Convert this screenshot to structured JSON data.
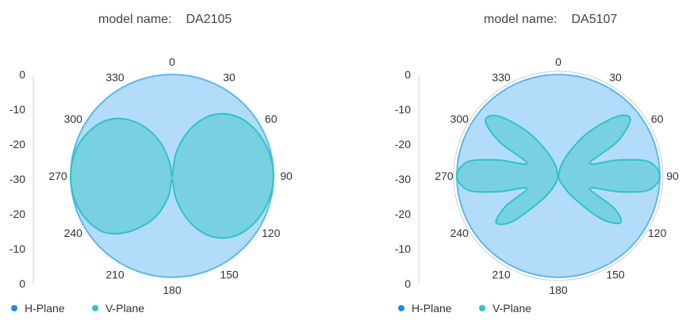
{
  "colors": {
    "h_plane": "#1E88E5",
    "v_plane": "#2EC4C4",
    "h_fill": "#B3DCFA",
    "h_stroke": "#5BB7EE",
    "grid": "#b9d9f3",
    "outer_ring": "#cfcfcf"
  },
  "chart_data": [
    {
      "type": "polar",
      "title_label": "model name:",
      "title_value": "DA2105",
      "radial_axis": {
        "ticks": [
          "0",
          "-10",
          "-20",
          "-30",
          "-20",
          "-10",
          "0"
        ],
        "range": [
          -30,
          0
        ],
        "unit": "dB"
      },
      "angular_ticks": [
        "0",
        "30",
        "60",
        "90",
        "120",
        "150",
        "180",
        "210",
        "240",
        "270",
        "300",
        "330"
      ],
      "legend": [
        "H-Plane",
        "V-Plane"
      ],
      "series": [
        {
          "name": "H-Plane",
          "angles": [
            0,
            30,
            60,
            90,
            120,
            150,
            180,
            210,
            240,
            270,
            300,
            330
          ],
          "values": [
            0,
            0,
            0,
            0,
            0,
            0,
            0,
            0,
            0,
            0,
            0,
            0
          ]
        },
        {
          "name": "V-Plane",
          "angles": [
            0,
            10,
            20,
            30,
            40,
            50,
            60,
            70,
            80,
            90,
            100,
            110,
            120,
            130,
            140,
            150,
            160,
            170,
            180,
            190,
            200,
            210,
            220,
            230,
            240,
            250,
            260,
            270,
            280,
            290,
            300,
            310,
            320,
            330,
            340,
            350
          ],
          "values": [
            -30,
            -23,
            -16,
            -10,
            -6,
            -3.5,
            -2,
            -1,
            -0.3,
            0,
            -0.3,
            -1,
            -2,
            -3.5,
            -6,
            -10,
            -16,
            -23,
            -29,
            -24,
            -18,
            -13,
            -8,
            -4,
            -2,
            -0.8,
            -0.2,
            0,
            -0.3,
            -1,
            -2.5,
            -4.5,
            -8,
            -13,
            -19,
            -26
          ]
        }
      ]
    },
    {
      "type": "polar",
      "title_label": "model name:",
      "title_value": "DA5107",
      "radial_axis": {
        "ticks": [
          "0",
          "-10",
          "-20",
          "-30",
          "-20",
          "-10",
          "0"
        ],
        "range": [
          -30,
          0
        ],
        "unit": "dB"
      },
      "angular_ticks": [
        "0",
        "30",
        "60",
        "90",
        "120",
        "150",
        "180",
        "210",
        "240",
        "270",
        "300",
        "330"
      ],
      "legend": [
        "H-Plane",
        "V-Plane"
      ],
      "series": [
        {
          "name": "H-Plane",
          "angles": [
            0,
            30,
            60,
            90,
            120,
            150,
            180,
            210,
            240,
            270,
            300,
            330
          ],
          "values": [
            0,
            0,
            0,
            0,
            0,
            0,
            0,
            0,
            0,
            0,
            0,
            0
          ]
        },
        {
          "name": "V-Plane",
          "angles": [
            0,
            15,
            25,
            35,
            45,
            52,
            60,
            68,
            75,
            80,
            85,
            90,
            95,
            100,
            105,
            112,
            120,
            127,
            135,
            145,
            155,
            165,
            180,
            195,
            205,
            215,
            225,
            233,
            240,
            248,
            255,
            260,
            265,
            270,
            275,
            280,
            285,
            292,
            300,
            307,
            315,
            325,
            335,
            345
          ],
          "values": [
            -30,
            -27,
            -22,
            -14,
            -5,
            -3,
            -10,
            -20,
            -12,
            -4,
            -1,
            0,
            -1,
            -4,
            -12,
            -20,
            -11,
            -7,
            -12,
            -22,
            -27,
            -29,
            -30,
            -29,
            -26,
            -21,
            -11,
            -7,
            -12,
            -20,
            -12,
            -4,
            -1,
            0,
            -1,
            -4,
            -12,
            -20,
            -10,
            -3,
            -5,
            -14,
            -22,
            -27
          ]
        }
      ]
    }
  ]
}
